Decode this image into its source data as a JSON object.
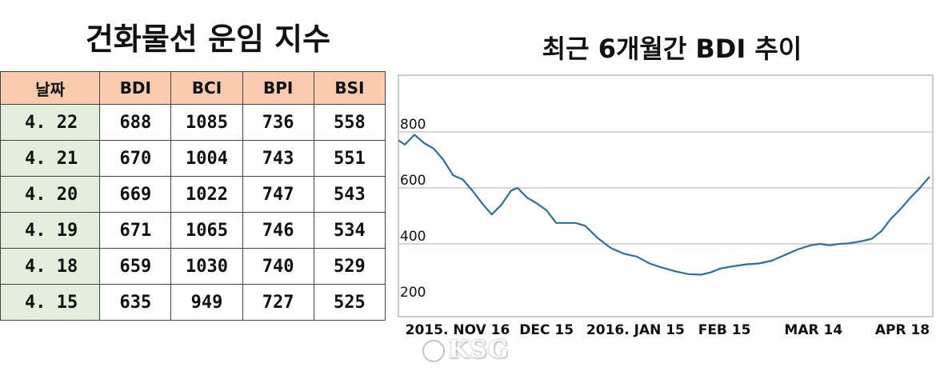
{
  "left_title": "건화물선 운임 지수",
  "right_title": "최근 6개월간 BDI 추이",
  "table": {
    "headers": [
      "날짜",
      "BDI",
      "BCI",
      "BPI",
      "BSI"
    ],
    "rows": [
      [
        "4. 22",
        "688",
        "1085",
        "736",
        "558"
      ],
      [
        "4. 21",
        "670",
        "1004",
        "743",
        "551"
      ],
      [
        "4. 20",
        "669",
        "1022",
        "747",
        "543"
      ],
      [
        "4. 19",
        "671",
        "1065",
        "746",
        "534"
      ],
      [
        "4. 18",
        "659",
        "1030",
        "740",
        "529"
      ],
      [
        "4. 15",
        "635",
        "949",
        "727",
        "525"
      ]
    ]
  },
  "colors": {
    "header_bg": "#f8cbad",
    "date_bg": "#e2efda",
    "line": "#2f6f97",
    "grid": "#c9c9c9"
  },
  "watermark": "KSG",
  "chart_data": {
    "type": "line",
    "title": "최근 6개월간 BDI 추이",
    "xlabel": "",
    "ylabel": "",
    "ylim": [
      200,
      850
    ],
    "yticks": [
      200,
      400,
      600,
      800
    ],
    "x_ticks": [
      "2015. NOV 16",
      "DEC 15",
      "2016. JAN 15",
      "FEB 15",
      "MAR 14",
      "APR 18"
    ],
    "grid": "horizontal",
    "series": [
      {
        "values": [
          [
            0,
            770
          ],
          [
            2,
            755
          ],
          [
            5,
            790
          ],
          [
            8,
            760
          ],
          [
            11,
            740
          ],
          [
            14,
            700
          ],
          [
            17,
            645
          ],
          [
            20,
            630
          ],
          [
            23,
            590
          ],
          [
            26,
            545
          ],
          [
            29,
            505
          ],
          [
            32,
            540
          ],
          [
            35,
            590
          ],
          [
            37,
            600
          ],
          [
            40,
            565
          ],
          [
            43,
            545
          ],
          [
            46,
            520
          ],
          [
            49,
            475
          ],
          [
            52,
            475
          ],
          [
            55,
            475
          ],
          [
            58,
            465
          ],
          [
            62,
            420
          ],
          [
            66,
            385
          ],
          [
            70,
            365
          ],
          [
            74,
            355
          ],
          [
            78,
            330
          ],
          [
            82,
            315
          ],
          [
            86,
            302
          ],
          [
            90,
            292
          ],
          [
            94,
            290
          ],
          [
            97,
            298
          ],
          [
            100,
            312
          ],
          [
            104,
            320
          ],
          [
            108,
            327
          ],
          [
            112,
            330
          ],
          [
            116,
            340
          ],
          [
            120,
            360
          ],
          [
            124,
            380
          ],
          [
            128,
            395
          ],
          [
            131,
            400
          ],
          [
            134,
            395
          ],
          [
            137,
            400
          ],
          [
            140,
            402
          ],
          [
            144,
            410
          ],
          [
            147,
            418
          ],
          [
            150,
            445
          ],
          [
            153,
            490
          ],
          [
            156,
            525
          ],
          [
            159,
            565
          ],
          [
            162,
            600
          ],
          [
            165,
            640
          ]
        ]
      }
    ]
  }
}
